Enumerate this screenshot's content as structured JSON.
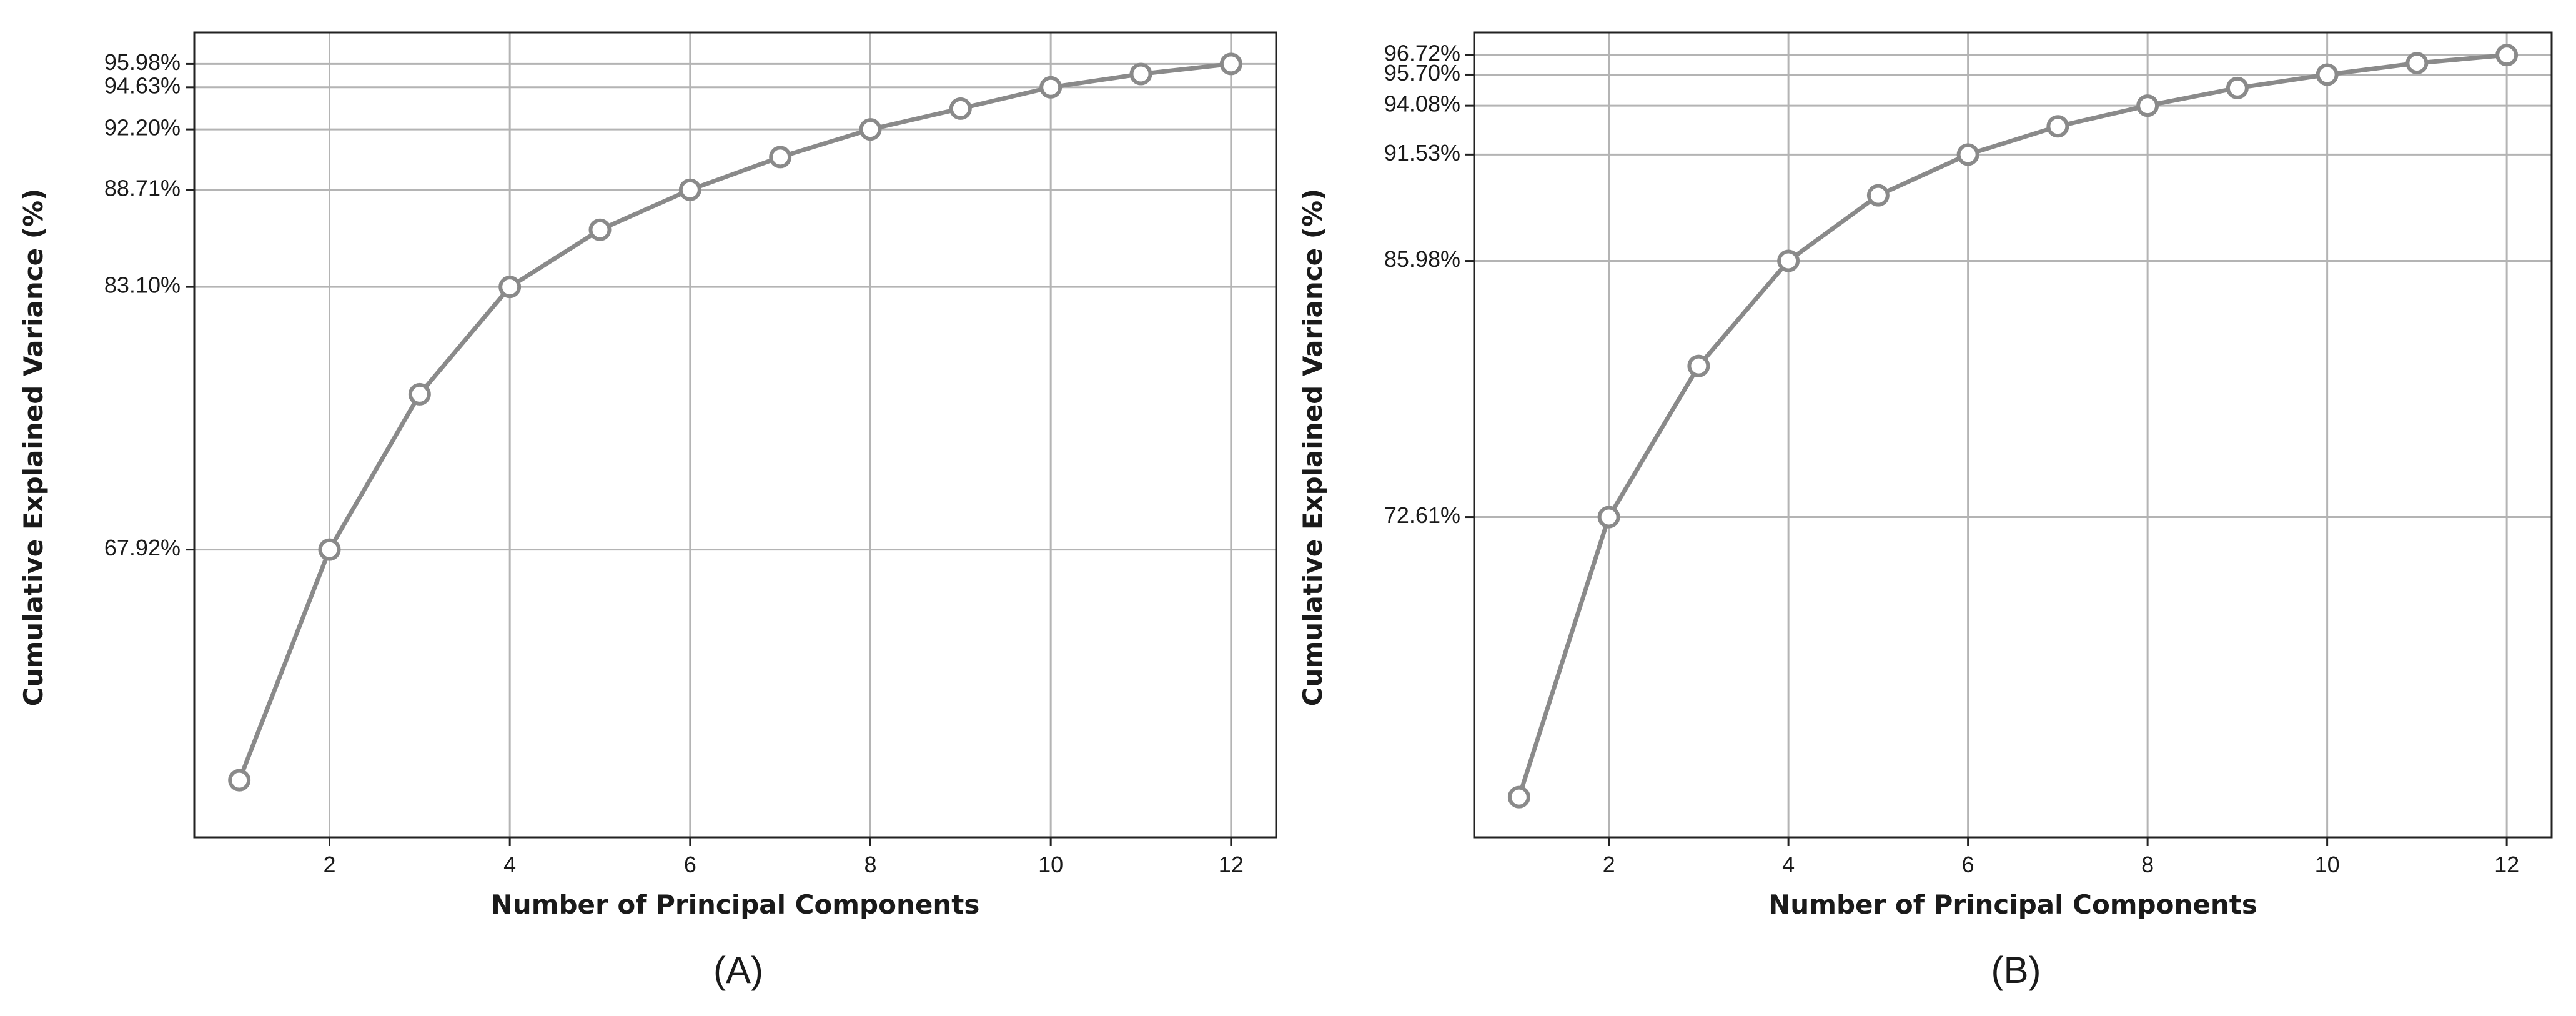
{
  "chart_data": [
    {
      "type": "line",
      "panel_label": "(A)",
      "xlabel": "Number of Principal Components",
      "ylabel": "Cumulative Explained Variance (%)",
      "xlim": [
        0.5,
        12.5
      ],
      "ylim": [
        51.3,
        97.8
      ],
      "x_ticks": [
        2,
        4,
        6,
        8,
        10,
        12
      ],
      "x_tick_labels": [
        "2",
        "4",
        "6",
        "8",
        "10",
        "12"
      ],
      "y_ticks": [
        67.92,
        83.1,
        88.71,
        92.2,
        94.63,
        95.98
      ],
      "y_tick_labels": [
        "67.92%",
        "83.10%",
        "88.71%",
        "92.20%",
        "94.63%",
        "95.98%"
      ],
      "grid": true,
      "series": [
        {
          "x": [
            1,
            2,
            3,
            4,
            5,
            6,
            7,
            8,
            9,
            10,
            11,
            12
          ],
          "values": [
            54.6,
            67.92,
            76.9,
            83.1,
            86.4,
            88.71,
            90.6,
            92.2,
            93.4,
            94.63,
            95.4,
            95.98
          ]
        }
      ]
    },
    {
      "type": "line",
      "panel_label": "(B)",
      "xlabel": "Number of Principal Components",
      "ylabel": "Cumulative Explained Variance (%)",
      "xlim": [
        0.5,
        12.5
      ],
      "ylim": [
        55.9,
        97.9
      ],
      "x_ticks": [
        2,
        4,
        6,
        8,
        10,
        12
      ],
      "x_tick_labels": [
        "2",
        "4",
        "6",
        "8",
        "10",
        "12"
      ],
      "y_ticks": [
        72.61,
        85.98,
        91.53,
        94.08,
        95.7,
        96.72
      ],
      "y_tick_labels": [
        "72.61%",
        "85.98%",
        "91.53%",
        "94.08%",
        "95.70%",
        "96.72%"
      ],
      "grid": true,
      "series": [
        {
          "x": [
            1,
            2,
            3,
            4,
            5,
            6,
            7,
            8,
            9,
            10,
            11,
            12
          ],
          "values": [
            58.0,
            72.61,
            80.5,
            85.98,
            89.4,
            91.53,
            93.0,
            94.08,
            95.0,
            95.7,
            96.3,
            96.72
          ]
        }
      ]
    }
  ],
  "colors": {
    "series": "#8a8a8a",
    "marker_fill": "#ffffff",
    "grid": "#b4b4b4",
    "frame": "#222222",
    "text": "#1a1a1a"
  }
}
